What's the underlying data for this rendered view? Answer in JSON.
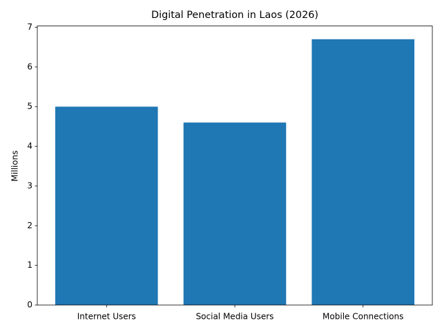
{
  "chart_data": {
    "type": "bar",
    "title": "Digital Penetration in Laos (2026)",
    "ylabel": "Millions",
    "categories": [
      "Internet Users",
      "Social Media Users",
      "Mobile Connections"
    ],
    "values": [
      5.0,
      4.6,
      6.7
    ],
    "color": "#1f77b4",
    "ylim": [
      0,
      7.035
    ],
    "yticks": [
      0,
      1,
      2,
      3,
      4,
      5,
      6,
      7
    ],
    "grid": false
  }
}
